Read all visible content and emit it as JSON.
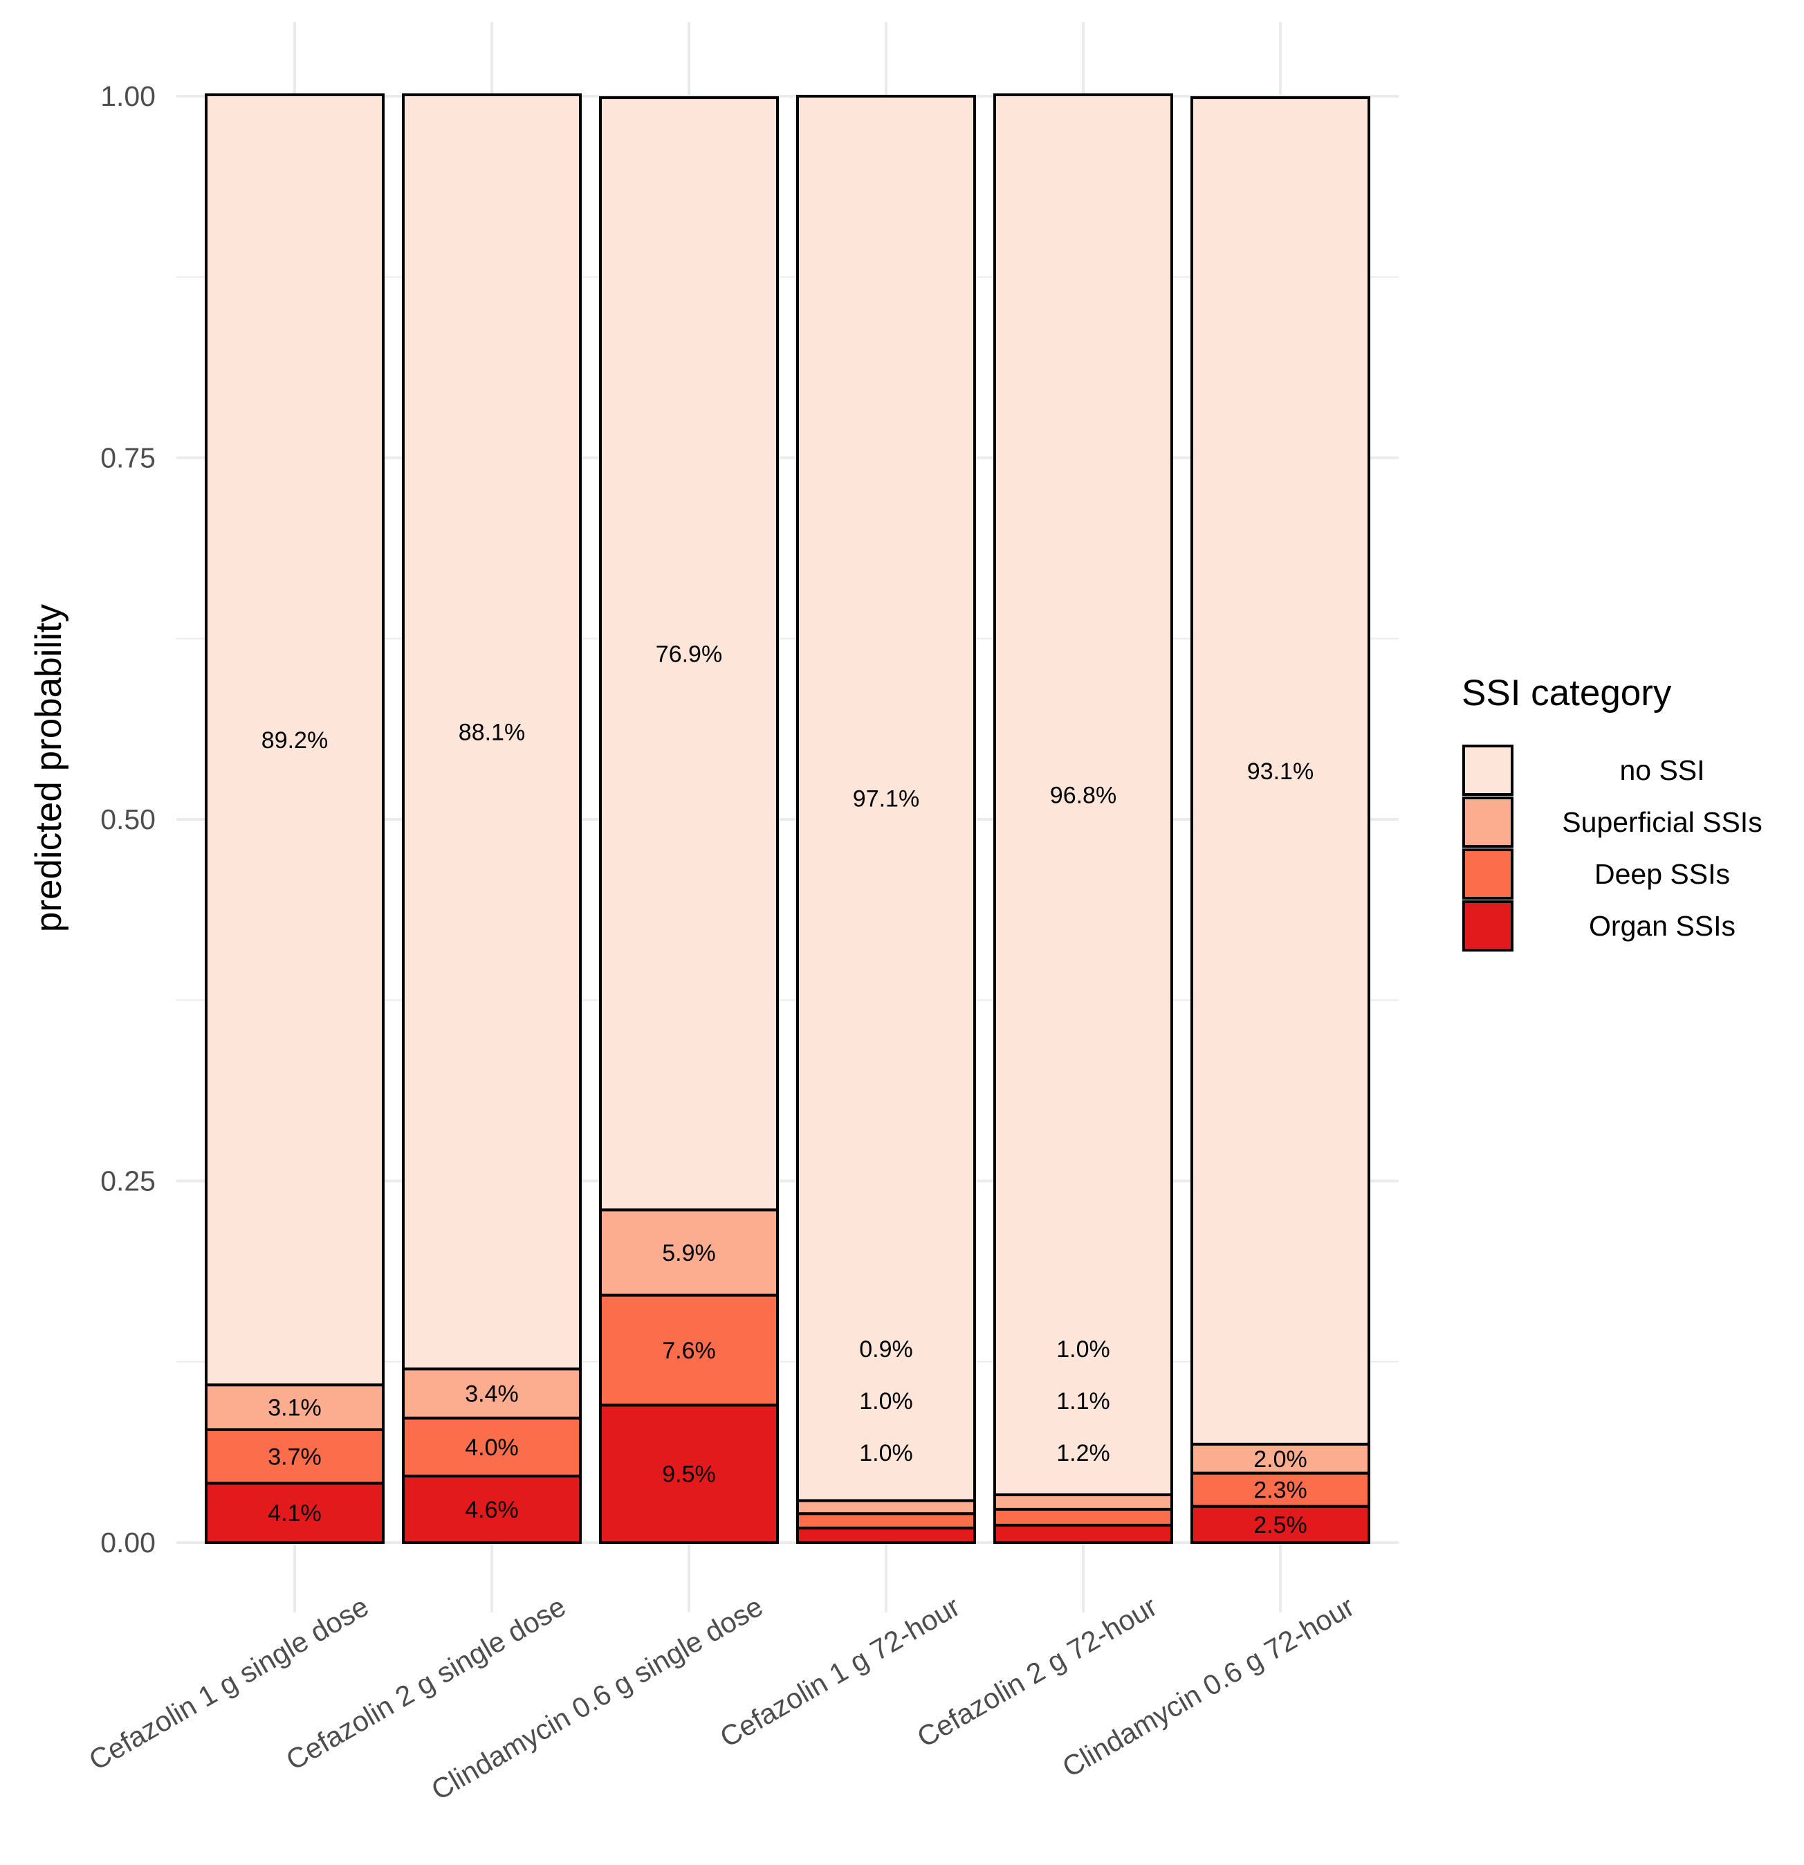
{
  "chart_data": {
    "type": "bar",
    "stacked": true,
    "categories": [
      "Cefazolin 1 g single dose",
      "Cefazolin 2 g single dose",
      "Clindamycin 0.6 g single dose",
      "Cefazolin 1 g 72-hour",
      "Cefazolin 2 g 72-hour",
      "Clindamycin 0.6 g 72-hour"
    ],
    "series": [
      {
        "name": "Organ SSIs",
        "color": "#e31a1c",
        "values": [
          0.041,
          0.046,
          0.095,
          0.01,
          0.012,
          0.025
        ],
        "labels": [
          "4.1%",
          "4.6%",
          "9.5%",
          "1.0%",
          "1.2%",
          "2.5%"
        ]
      },
      {
        "name": "Deep  SSIs",
        "color": "#fc6d4b",
        "values": [
          0.037,
          0.04,
          0.076,
          0.01,
          0.011,
          0.023
        ],
        "labels": [
          "3.7%",
          "4.0%",
          "7.6%",
          "1.0%",
          "1.1%",
          "2.3%"
        ]
      },
      {
        "name": "Superficial SSIs",
        "color": "#fcad8f",
        "values": [
          0.031,
          0.034,
          0.059,
          0.009,
          0.01,
          0.02
        ],
        "labels": [
          "3.1%",
          "3.4%",
          "5.9%",
          "0.9%",
          "1.0%",
          "2.0%"
        ]
      },
      {
        "name": "no SSI",
        "color": "#fee5da",
        "values": [
          0.892,
          0.881,
          0.769,
          0.971,
          0.968,
          0.931
        ],
        "labels": [
          "89.2%",
          "88.1%",
          "76.9%",
          "97.1%",
          "96.8%",
          "93.1%"
        ]
      }
    ],
    "label_mode": [
      "inside",
      "inside",
      "inside",
      "stacked-above",
      "stacked-above",
      "inside"
    ],
    "xlabel": "",
    "ylabel": "predicted probability",
    "ylim": [
      0,
      1
    ],
    "yticks": [
      0,
      0.25,
      0.5,
      0.75,
      1
    ],
    "ytick_labels": [
      "0.00",
      "0.25",
      "0.50",
      "0.75",
      "1.00"
    ],
    "grid": true,
    "legend": {
      "title": "SSI category",
      "position": "right",
      "entries": [
        "no SSI",
        "Superficial SSIs",
        "Deep  SSIs",
        "Organ SSIs"
      ],
      "colors": [
        "#fee5da",
        "#fcad8f",
        "#fc6d4b",
        "#e31a1c"
      ]
    }
  }
}
